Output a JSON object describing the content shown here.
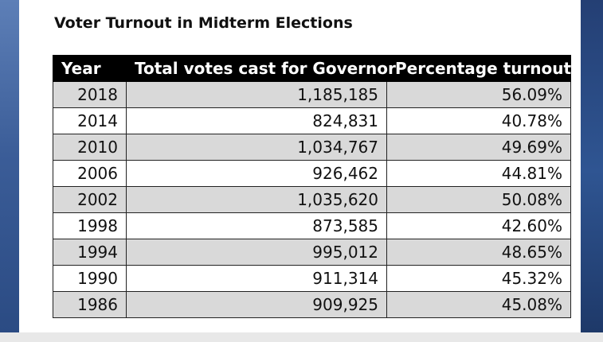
{
  "chart_data": {
    "type": "table",
    "title": "Voter Turnout in Midterm Elections",
    "columns": [
      "Year",
      "Total votes cast for Governor",
      "Percentage turnout"
    ],
    "rows": [
      {
        "year": "2018",
        "votes": "1,185,185",
        "turnout": "56.09%"
      },
      {
        "year": "2014",
        "votes": "824,831",
        "turnout": "40.78%"
      },
      {
        "year": "2010",
        "votes": "1,034,767",
        "turnout": "49.69%"
      },
      {
        "year": "2006",
        "votes": "926,462",
        "turnout": "44.81%"
      },
      {
        "year": "2002",
        "votes": "1,035,620",
        "turnout": "50.08%"
      },
      {
        "year": "1998",
        "votes": "873,585",
        "turnout": "42.60%"
      },
      {
        "year": "1994",
        "votes": "995,012",
        "turnout": "48.65%"
      },
      {
        "year": "1990",
        "votes": "911,314",
        "turnout": "45.32%"
      },
      {
        "year": "1986",
        "votes": "909,925",
        "turnout": "45.08%"
      }
    ]
  },
  "colors": {
    "header_bg": "#000000",
    "header_text": "#ffffff",
    "shaded_row": "#d9d9d9",
    "plain_row": "#ffffff",
    "background": "#2f4f86"
  }
}
